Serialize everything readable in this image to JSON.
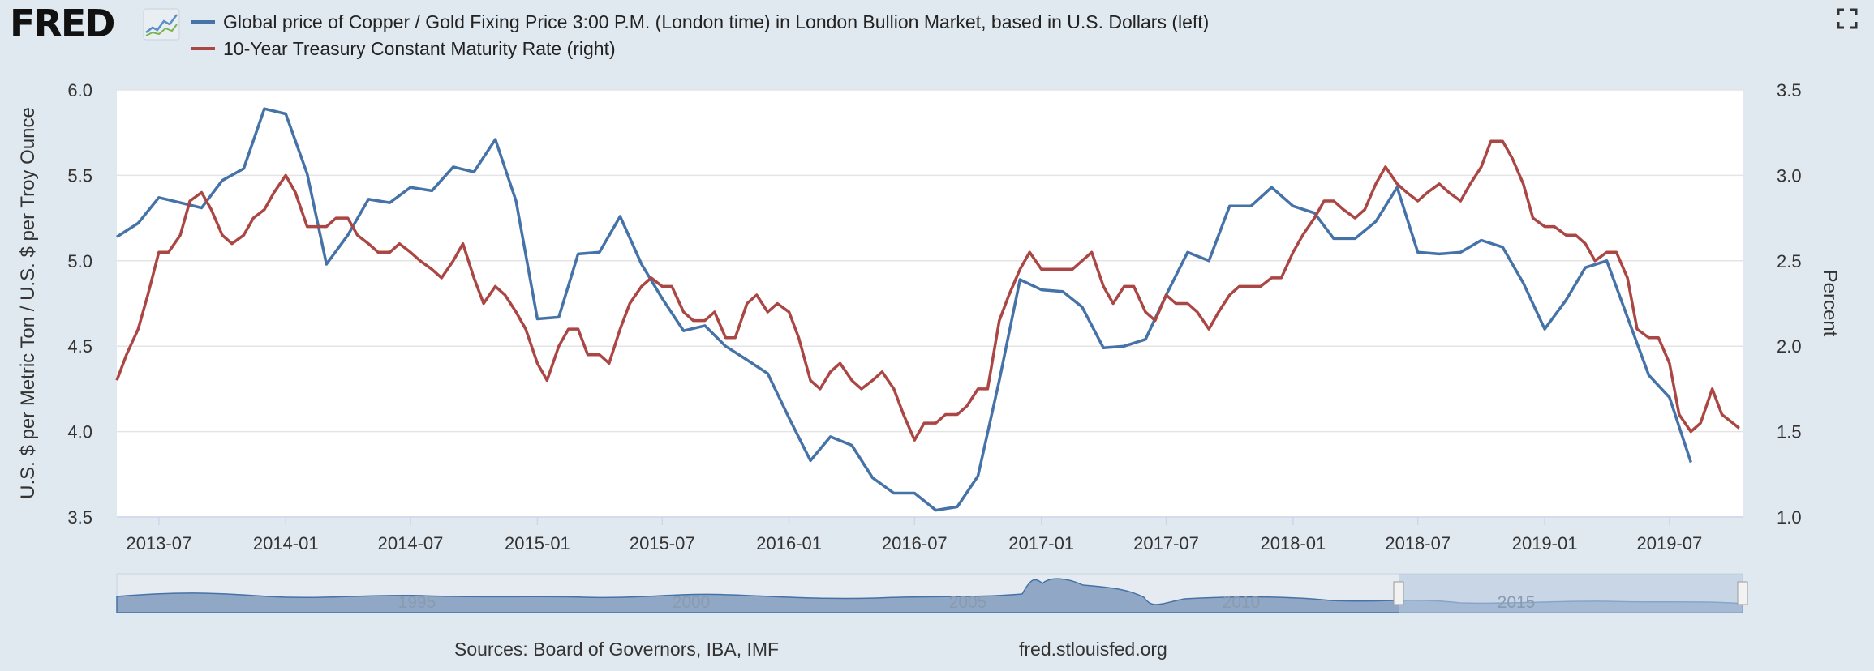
{
  "brand": "FRED",
  "icons": {
    "logo_chart": "line-chart-icon",
    "fullscreen": "fullscreen-icon"
  },
  "legend": [
    {
      "label": "Global price of Copper / Gold Fixing Price 3:00 P.M. (London time) in London Bullion Market, based in U.S. Dollars (left)",
      "color": "#4572a7"
    },
    {
      "label": "10-Year Treasury Constant Maturity Rate (right)",
      "color": "#aa4643"
    }
  ],
  "colors": {
    "background": "#e1e9f0",
    "plot_bg": "#ffffff",
    "series1": "#4572a7",
    "series2": "#aa4643",
    "navigator_fill": "#90a8c5",
    "navigator_selection": "#b4c8e0"
  },
  "footer": {
    "sources": "Sources: Board of Governors, IBA, IMF",
    "site": "fred.stlouisfed.org"
  },
  "navigator": {
    "labels": [
      "1995",
      "2000",
      "2005",
      "2010",
      "2015"
    ]
  },
  "chart_data": {
    "type": "line",
    "title": "",
    "xlabel": "",
    "ylabel": "U.S. $ per Metric Ton / U.S. $ per Troy Ounce",
    "y2label": "Percent",
    "xlim": [
      "2013-05-01",
      "2019-10-15"
    ],
    "ylim": [
      3.5,
      6.0
    ],
    "y2lim": [
      1.0,
      3.5
    ],
    "x_ticks": [
      "2013-07",
      "2014-01",
      "2014-07",
      "2015-01",
      "2015-07",
      "2016-01",
      "2016-07",
      "2017-01",
      "2017-07",
      "2018-01",
      "2018-07",
      "2019-01",
      "2019-07"
    ],
    "y_ticks": [
      "3.5",
      "4.0",
      "4.5",
      "5.0",
      "5.5",
      "6.0"
    ],
    "y2_ticks": [
      "1.0",
      "1.5",
      "2.0",
      "2.5",
      "3.0",
      "3.5"
    ],
    "grid": true,
    "legend_position": "top",
    "series": [
      {
        "name": "Global price of Copper / Gold Fixing Price 3:00 P.M. (London time) in London Bullion Market, based in U.S. Dollars (left)",
        "axis": "left",
        "color": "#4572a7",
        "x": [
          "2013-05",
          "2013-06",
          "2013-07",
          "2013-08",
          "2013-09",
          "2013-10",
          "2013-11",
          "2013-12",
          "2014-01",
          "2014-02",
          "2014-03",
          "2014-04",
          "2014-05",
          "2014-06",
          "2014-07",
          "2014-08",
          "2014-09",
          "2014-10",
          "2014-11",
          "2014-12",
          "2015-01",
          "2015-02",
          "2015-03",
          "2015-04",
          "2015-05",
          "2015-06",
          "2015-07",
          "2015-08",
          "2015-09",
          "2015-10",
          "2015-11",
          "2015-12",
          "2016-01",
          "2016-02",
          "2016-03",
          "2016-04",
          "2016-05",
          "2016-06",
          "2016-07",
          "2016-08",
          "2016-09",
          "2016-10",
          "2016-11",
          "2016-12",
          "2017-01",
          "2017-02",
          "2017-03",
          "2017-04",
          "2017-05",
          "2017-06",
          "2017-07",
          "2017-08",
          "2017-09",
          "2017-10",
          "2017-11",
          "2017-12",
          "2018-01",
          "2018-02",
          "2018-03",
          "2018-04",
          "2018-05",
          "2018-06",
          "2018-07",
          "2018-08",
          "2018-09",
          "2018-10",
          "2018-11",
          "2018-12",
          "2019-01",
          "2019-02",
          "2019-03",
          "2019-04",
          "2019-05",
          "2019-06",
          "2019-07",
          "2019-08"
        ],
        "values": [
          5.14,
          5.22,
          5.37,
          5.34,
          5.31,
          5.47,
          5.54,
          5.89,
          5.86,
          5.51,
          4.98,
          5.15,
          5.36,
          5.34,
          5.43,
          5.41,
          5.55,
          5.52,
          5.71,
          5.35,
          4.66,
          4.67,
          5.04,
          5.05,
          5.26,
          4.98,
          4.78,
          4.59,
          4.62,
          4.5,
          4.42,
          4.34,
          4.08,
          3.83,
          3.97,
          3.92,
          3.73,
          3.64,
          3.64,
          3.54,
          3.56,
          3.74,
          4.3,
          4.89,
          4.83,
          4.82,
          4.73,
          4.49,
          4.5,
          4.54,
          4.8,
          5.05,
          5.0,
          5.32,
          5.32,
          5.43,
          5.32,
          5.28,
          5.13,
          5.13,
          5.23,
          5.43,
          5.05,
          5.04,
          5.05,
          5.12,
          5.08,
          4.87,
          4.6,
          4.77,
          4.96,
          5.0,
          4.67,
          4.33,
          4.2,
          3.82
        ]
      },
      {
        "name": "10-Year Treasury Constant Maturity Rate (right)",
        "axis": "right",
        "color": "#aa4643",
        "x": [
          "2013-05-01",
          "2013-05-15",
          "2013-06-01",
          "2013-06-15",
          "2013-07-01",
          "2013-07-15",
          "2013-08-01",
          "2013-08-15",
          "2013-09-01",
          "2013-09-15",
          "2013-10-01",
          "2013-10-15",
          "2013-11-01",
          "2013-11-15",
          "2013-12-01",
          "2013-12-15",
          "2014-01-01",
          "2014-01-15",
          "2014-02-01",
          "2014-02-15",
          "2014-03-01",
          "2014-03-15",
          "2014-04-01",
          "2014-04-15",
          "2014-05-01",
          "2014-05-15",
          "2014-06-01",
          "2014-06-15",
          "2014-07-01",
          "2014-07-15",
          "2014-08-01",
          "2014-08-15",
          "2014-09-01",
          "2014-09-15",
          "2014-10-01",
          "2014-10-15",
          "2014-11-01",
          "2014-11-15",
          "2014-12-01",
          "2014-12-15",
          "2015-01-01",
          "2015-01-15",
          "2015-02-01",
          "2015-02-15",
          "2015-03-01",
          "2015-03-15",
          "2015-04-01",
          "2015-04-15",
          "2015-05-01",
          "2015-05-15",
          "2015-06-01",
          "2015-06-15",
          "2015-07-01",
          "2015-07-15",
          "2015-08-01",
          "2015-08-15",
          "2015-09-01",
          "2015-09-15",
          "2015-10-01",
          "2015-10-15",
          "2015-11-01",
          "2015-11-15",
          "2015-12-01",
          "2015-12-15",
          "2016-01-01",
          "2016-01-15",
          "2016-02-01",
          "2016-02-15",
          "2016-03-01",
          "2016-03-15",
          "2016-04-01",
          "2016-04-15",
          "2016-05-01",
          "2016-05-15",
          "2016-06-01",
          "2016-06-15",
          "2016-07-01",
          "2016-07-15",
          "2016-08-01",
          "2016-08-15",
          "2016-09-01",
          "2016-09-15",
          "2016-10-01",
          "2016-10-15",
          "2016-11-01",
          "2016-11-15",
          "2016-12-01",
          "2016-12-15",
          "2017-01-01",
          "2017-01-15",
          "2017-02-01",
          "2017-02-15",
          "2017-03-01",
          "2017-03-15",
          "2017-04-01",
          "2017-04-15",
          "2017-05-01",
          "2017-05-15",
          "2017-06-01",
          "2017-06-15",
          "2017-07-01",
          "2017-07-15",
          "2017-08-01",
          "2017-08-15",
          "2017-09-01",
          "2017-09-15",
          "2017-10-01",
          "2017-10-15",
          "2017-11-01",
          "2017-11-15",
          "2017-12-01",
          "2017-12-15",
          "2018-01-01",
          "2018-01-15",
          "2018-02-01",
          "2018-02-15",
          "2018-03-01",
          "2018-03-15",
          "2018-04-01",
          "2018-04-15",
          "2018-05-01",
          "2018-05-15",
          "2018-06-01",
          "2018-06-15",
          "2018-07-01",
          "2018-07-15",
          "2018-08-01",
          "2018-08-15",
          "2018-09-01",
          "2018-09-15",
          "2018-10-01",
          "2018-10-15",
          "2018-11-01",
          "2018-11-15",
          "2018-12-01",
          "2018-12-15",
          "2019-01-01",
          "2019-01-15",
          "2019-02-01",
          "2019-02-15",
          "2019-03-01",
          "2019-03-15",
          "2019-04-01",
          "2019-04-15",
          "2019-05-01",
          "2019-05-15",
          "2019-06-01",
          "2019-06-15",
          "2019-07-01",
          "2019-07-15",
          "2019-08-01",
          "2019-08-15",
          "2019-09-01",
          "2019-09-15",
          "2019-10-01",
          "2019-10-10"
        ],
        "values": [
          1.8,
          1.95,
          2.1,
          2.3,
          2.55,
          2.55,
          2.65,
          2.85,
          2.9,
          2.8,
          2.65,
          2.6,
          2.65,
          2.75,
          2.8,
          2.9,
          3.0,
          2.9,
          2.7,
          2.7,
          2.7,
          2.75,
          2.75,
          2.65,
          2.6,
          2.55,
          2.55,
          2.6,
          2.55,
          2.5,
          2.45,
          2.4,
          2.5,
          2.6,
          2.4,
          2.25,
          2.35,
          2.3,
          2.2,
          2.1,
          1.9,
          1.8,
          2.0,
          2.1,
          2.1,
          1.95,
          1.95,
          1.9,
          2.1,
          2.25,
          2.35,
          2.4,
          2.35,
          2.35,
          2.2,
          2.15,
          2.15,
          2.2,
          2.05,
          2.05,
          2.25,
          2.3,
          2.2,
          2.25,
          2.2,
          2.05,
          1.8,
          1.75,
          1.85,
          1.9,
          1.8,
          1.75,
          1.8,
          1.85,
          1.75,
          1.6,
          1.45,
          1.55,
          1.55,
          1.6,
          1.6,
          1.65,
          1.75,
          1.75,
          2.15,
          2.3,
          2.45,
          2.55,
          2.45,
          2.45,
          2.45,
          2.45,
          2.5,
          2.55,
          2.35,
          2.25,
          2.35,
          2.35,
          2.2,
          2.15,
          2.3,
          2.25,
          2.25,
          2.2,
          2.1,
          2.2,
          2.3,
          2.35,
          2.35,
          2.35,
          2.4,
          2.4,
          2.55,
          2.65,
          2.75,
          2.85,
          2.85,
          2.8,
          2.75,
          2.8,
          2.95,
          3.05,
          2.95,
          2.9,
          2.85,
          2.9,
          2.95,
          2.9,
          2.85,
          2.95,
          3.05,
          3.2,
          3.2,
          3.1,
          2.95,
          2.75,
          2.7,
          2.7,
          2.65,
          2.65,
          2.6,
          2.5,
          2.55,
          2.55,
          2.4,
          2.1,
          2.05,
          2.05,
          1.9,
          1.6,
          1.5,
          1.55,
          1.75,
          1.6,
          1.55,
          1.52
        ]
      }
    ]
  }
}
